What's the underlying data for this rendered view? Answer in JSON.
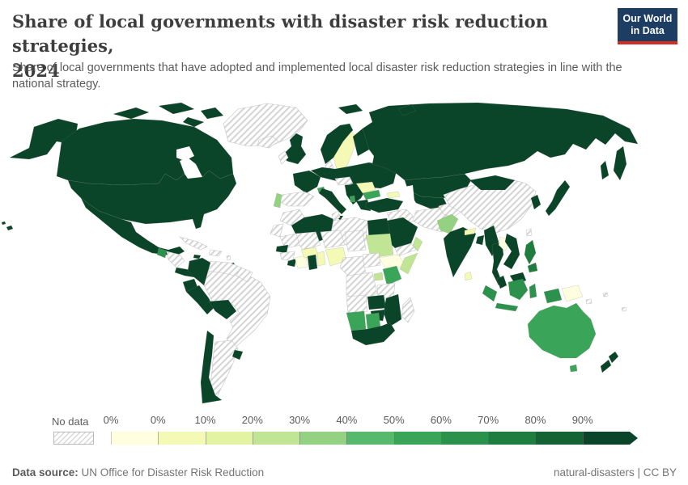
{
  "header": {
    "title": "Share of local governments with disaster risk reduction strategies, 2024",
    "title_lines": [
      "Share of local governments with disaster risk reduction strategies,",
      "2024"
    ],
    "logo": {
      "line1": "Our World",
      "line2": "in Data"
    }
  },
  "subtitle": "Share of local governments that have adopted and implemented local disaster risk reduction strategies in line with the national strategy.",
  "legend": {
    "no_data_label": "No data",
    "ticks": [
      "0%",
      "0%",
      "10%",
      "20%",
      "30%",
      "40%",
      "50%",
      "60%",
      "70%",
      "80%",
      "90%"
    ],
    "segment_colors": [
      "#ffffe0",
      "#f4f9b5",
      "#e2f3a3",
      "#c0e595",
      "#94d183",
      "#57b96c",
      "#3aa559",
      "#2b914c",
      "#1f7d40",
      "#136335",
      "#0a4429"
    ]
  },
  "footer": {
    "source_label": "Data source:",
    "source_value": "UN Office for Disaster Risk Reduction",
    "attribution": "natural-disasters | CC BY"
  },
  "colors": {
    "logo_bg": "#1d3d63",
    "logo_accent": "#cf2e24",
    "darkest_green": "#0a4429",
    "hatch_line": "#d4d4d4",
    "ocean": "#ffffff"
  },
  "chart_data": {
    "type": "choropleth",
    "title": "Share of local governments with disaster risk reduction strategies, 2024",
    "unit": "% of local governments",
    "legend_bins": [
      "No data",
      "0%",
      "0-10%",
      "10-20%",
      "20-30%",
      "30-40%",
      "40-50%",
      "50-60%",
      "60-70%",
      "70-80%",
      "80-90%",
      "90-100%"
    ],
    "regions": [
      {
        "id": "canada",
        "name": "Canada",
        "value": "90-100%",
        "color": "#0a4429"
      },
      {
        "id": "usa",
        "name": "United States",
        "value": "90-100%",
        "color": "#0a4429"
      },
      {
        "id": "mexico",
        "name": "Mexico",
        "value": "90-100%",
        "color": "#0a4429"
      },
      {
        "id": "guatemala",
        "name": "Guatemala",
        "value": "60-70%",
        "color": "#2b914c"
      },
      {
        "id": "costarica-panama",
        "name": "Costa Rica & Panama",
        "value": "90-100%",
        "color": "#0a4429"
      },
      {
        "id": "jamaica",
        "name": "Jamaica",
        "value": "90-100%",
        "color": "#0a4429"
      },
      {
        "id": "trinidad",
        "name": "Trinidad and Tobago",
        "value": "90-100%",
        "color": "#0a4429"
      },
      {
        "id": "colombia",
        "name": "Colombia",
        "value": "90-100%",
        "color": "#0a4429"
      },
      {
        "id": "ecuador",
        "name": "Ecuador",
        "value": "90-100%",
        "color": "#0a4429"
      },
      {
        "id": "peru",
        "name": "Peru",
        "value": "90-100%",
        "color": "#0a4429"
      },
      {
        "id": "bolivia",
        "name": "Bolivia",
        "value": "90-100%",
        "color": "#0a4429"
      },
      {
        "id": "chile",
        "name": "Chile",
        "value": "90-100%",
        "color": "#0a4429"
      },
      {
        "id": "uruguay",
        "name": "Uruguay",
        "value": "90-100%",
        "color": "#0a4429"
      },
      {
        "id": "norway",
        "name": "Norway",
        "value": "90-100%",
        "color": "#0a4429"
      },
      {
        "id": "finland",
        "name": "Finland",
        "value": "90-100%",
        "color": "#0a4429"
      },
      {
        "id": "uk",
        "name": "United Kingdom",
        "value": "90-100%",
        "color": "#0a4429"
      },
      {
        "id": "france",
        "name": "France",
        "value": "90-100%",
        "color": "#0a4429"
      },
      {
        "id": "central-europe",
        "name": "Germany, Poland, Ukraine & Eastern Europe",
        "value": "90-100%",
        "color": "#0a4429"
      },
      {
        "id": "italy",
        "name": "Italy",
        "value": "90-100%",
        "color": "#0a4429"
      },
      {
        "id": "balkans",
        "name": "Serbia & Western Balkans",
        "value": "90-100%",
        "color": "#0a4429"
      },
      {
        "id": "greece",
        "name": "Greece",
        "value": "90-100%",
        "color": "#0a4429"
      },
      {
        "id": "russia",
        "name": "Russia",
        "value": "90-100%",
        "color": "#0a4429"
      },
      {
        "id": "kazakhstan",
        "name": "Kazakhstan",
        "value": "90-100%",
        "color": "#0a4429"
      },
      {
        "id": "central-asia",
        "name": "Uzbekistan & Turkmenistan",
        "value": "90-100%",
        "color": "#0a4429"
      },
      {
        "id": "turkey",
        "name": "Turkey",
        "value": "90-100%",
        "color": "#0a4429"
      },
      {
        "id": "saudi-arabia",
        "name": "Saudi Arabia",
        "value": "90-100%",
        "color": "#0a4429"
      },
      {
        "id": "algeria",
        "name": "Algeria",
        "value": "90-100%",
        "color": "#0a4429"
      },
      {
        "id": "egypt",
        "name": "Egypt",
        "value": "90-100%",
        "color": "#0a4429"
      },
      {
        "id": "senegal",
        "name": "Senegal & Gambia",
        "value": "90-100%",
        "color": "#0a4429"
      },
      {
        "id": "liberia",
        "name": "Liberia",
        "value": "90-100%",
        "color": "#0a4429"
      },
      {
        "id": "ghana",
        "name": "Ghana",
        "value": "90-100%",
        "color": "#0a4429"
      },
      {
        "id": "zambia",
        "name": "Zambia",
        "value": "90-100%",
        "color": "#0a4429"
      },
      {
        "id": "zimbabwe",
        "name": "Zimbabwe",
        "value": "90-100%",
        "color": "#0a4429"
      },
      {
        "id": "mozambique",
        "name": "Mozambique",
        "value": "90-100%",
        "color": "#0a4429"
      },
      {
        "id": "south-africa",
        "name": "South Africa",
        "value": "90-100%",
        "color": "#0a4429"
      },
      {
        "id": "india",
        "name": "India",
        "value": "90-100%",
        "color": "#0a4429"
      },
      {
        "id": "bangladesh",
        "name": "Bangladesh",
        "value": "90-100%",
        "color": "#0a4429"
      },
      {
        "id": "myanmar",
        "name": "Myanmar",
        "value": "90-100%",
        "color": "#0a4429"
      },
      {
        "id": "thailand",
        "name": "Thailand",
        "value": "90-100%",
        "color": "#0a4429"
      },
      {
        "id": "vietnam",
        "name": "Vietnam & Cambodia",
        "value": "90-100%",
        "color": "#0a4429"
      },
      {
        "id": "malaysia",
        "name": "Malaysia",
        "value": "90-100%",
        "color": "#0a4429"
      },
      {
        "id": "south-korea",
        "name": "South Korea",
        "value": "90-100%",
        "color": "#0a4429"
      },
      {
        "id": "japan",
        "name": "Japan",
        "value": "90-100%",
        "color": "#0a4429"
      },
      {
        "id": "mongolia",
        "name": "Mongolia",
        "value": "90-100%",
        "color": "#0a4429"
      },
      {
        "id": "new-zealand",
        "name": "New Zealand",
        "value": "90-100%",
        "color": "#0a4429"
      },
      {
        "id": "philippines",
        "name": "Philippines",
        "value": "70-80%",
        "color": "#1f7d40"
      },
      {
        "id": "indonesia",
        "name": "Indonesia",
        "value": "60-70%",
        "color": "#2b914c"
      },
      {
        "id": "australia",
        "name": "Australia",
        "value": "50-60%",
        "color": "#3aa559"
      },
      {
        "id": "kenya",
        "name": "Kenya",
        "value": "50-60%",
        "color": "#3aa559"
      },
      {
        "id": "namibia",
        "name": "Namibia",
        "value": "50-60%",
        "color": "#3aa559"
      },
      {
        "id": "botswana",
        "name": "Botswana",
        "value": "50-60%",
        "color": "#3aa559"
      },
      {
        "id": "bulgaria",
        "name": "Bulgaria",
        "value": "50-60%",
        "color": "#3aa559"
      },
      {
        "id": "switzerland",
        "name": "Switzerland",
        "value": "50-60%",
        "color": "#3aa559"
      },
      {
        "id": "albania",
        "name": "Albania",
        "value": "50-60%",
        "color": "#3aa559"
      },
      {
        "id": "portugal",
        "name": "Portugal",
        "value": "30-40%",
        "color": "#94d183"
      },
      {
        "id": "pakistan",
        "name": "Pakistan",
        "value": "30-40%",
        "color": "#94d183"
      },
      {
        "id": "sudan",
        "name": "Sudan",
        "value": "20-30%",
        "color": "#c0e595"
      },
      {
        "id": "somalia",
        "name": "Somalia",
        "value": "20-30%",
        "color": "#c0e595"
      },
      {
        "id": "uganda",
        "name": "Uganda",
        "value": "20-30%",
        "color": "#c0e595"
      },
      {
        "id": "kyrgyzstan",
        "name": "Kyrgyzstan",
        "value": "20-30%",
        "color": "#c0e595"
      },
      {
        "id": "oman",
        "name": "Oman",
        "value": "20-30%",
        "color": "#c0e595"
      },
      {
        "id": "sweden",
        "name": "Sweden",
        "value": "0-10%",
        "color": "#f4f9b5"
      },
      {
        "id": "romania",
        "name": "Romania",
        "value": "0-10%",
        "color": "#f4f9b5"
      },
      {
        "id": "nigeria",
        "name": "Nigeria",
        "value": "0-10%",
        "color": "#f4f9b5"
      },
      {
        "id": "burkina-faso",
        "name": "Burkina Faso",
        "value": "0-10%",
        "color": "#f4f9b5"
      },
      {
        "id": "togo-benin",
        "name": "Togo & Benin",
        "value": "0-10%",
        "color": "#f4f9b5"
      },
      {
        "id": "sri-lanka",
        "name": "Sri Lanka",
        "value": "0-10%",
        "color": "#f4f9b5"
      },
      {
        "id": "nepal",
        "name": "Nepal",
        "value": "0-10%",
        "color": "#f4f9b5"
      },
      {
        "id": "georgia",
        "name": "Georgia",
        "value": "0-10%",
        "color": "#f4f9b5"
      },
      {
        "id": "ethiopia",
        "name": "Ethiopia",
        "value": "0%",
        "color": "#ffffe0"
      },
      {
        "id": "cote-divoire",
        "name": "Cote d'Ivoire",
        "value": "0%",
        "color": "#ffffe0"
      },
      {
        "id": "laos",
        "name": "Laos",
        "value": "0%",
        "color": "#ffffe0"
      },
      {
        "id": "papua-new-guinea",
        "name": "Papua New Guinea",
        "value": "0%",
        "color": "#ffffe0"
      },
      {
        "id": "greenland",
        "name": "Greenland",
        "value": "No data",
        "color": "nodata"
      },
      {
        "id": "iceland",
        "name": "Iceland",
        "value": "No data",
        "color": "nodata"
      },
      {
        "id": "ireland",
        "name": "Ireland",
        "value": "No data",
        "color": "nodata"
      },
      {
        "id": "denmark",
        "name": "Denmark",
        "value": "No data",
        "color": "nodata"
      },
      {
        "id": "spain",
        "name": "Spain",
        "value": "No data",
        "color": "nodata"
      },
      {
        "id": "czechia-hungary",
        "name": "Czechia, Austria & Hungary",
        "value": "No data",
        "color": "nodata"
      },
      {
        "id": "morocco",
        "name": "Morocco",
        "value": "No data",
        "color": "nodata"
      },
      {
        "id": "tunisia",
        "name": "Tunisia",
        "value": "No data",
        "color": "nodata"
      },
      {
        "id": "libya",
        "name": "Libya",
        "value": "No data",
        "color": "nodata"
      },
      {
        "id": "western-sahara",
        "name": "Western Sahara",
        "value": "No data",
        "color": "nodata"
      },
      {
        "id": "mauritania",
        "name": "Mauritania",
        "value": "No data",
        "color": "nodata"
      },
      {
        "id": "mali",
        "name": "Mali",
        "value": "No data",
        "color": "nodata"
      },
      {
        "id": "niger",
        "name": "Niger",
        "value": "No data",
        "color": "nodata"
      },
      {
        "id": "chad",
        "name": "Chad",
        "value": "No data",
        "color": "nodata"
      },
      {
        "id": "guinea",
        "name": "Guinea",
        "value": "No data",
        "color": "nodata"
      },
      {
        "id": "cameroon-congo",
        "name": "Cameroon & Central Africa",
        "value": "No data",
        "color": "nodata"
      },
      {
        "id": "south-sudan",
        "name": "South Sudan & CAR",
        "value": "No data",
        "color": "nodata"
      },
      {
        "id": "drc",
        "name": "Democratic Republic of Congo",
        "value": "No data",
        "color": "nodata"
      },
      {
        "id": "tanzania",
        "name": "Tanzania",
        "value": "No data",
        "color": "nodata"
      },
      {
        "id": "angola",
        "name": "Angola",
        "value": "No data",
        "color": "nodata"
      },
      {
        "id": "madagascar",
        "name": "Madagascar",
        "value": "No data",
        "color": "nodata"
      },
      {
        "id": "venezuela",
        "name": "Venezuela",
        "value": "No data",
        "color": "nodata"
      },
      {
        "id": "guyanas",
        "name": "Guyana, Suriname & Fr. Guiana",
        "value": "No data",
        "color": "nodata"
      },
      {
        "id": "brazil",
        "name": "Brazil",
        "value": "No data",
        "color": "nodata"
      },
      {
        "id": "argentina",
        "name": "Argentina & Paraguay",
        "value": "No data",
        "color": "nodata"
      },
      {
        "id": "cuba",
        "name": "Cuba",
        "value": "No data",
        "color": "nodata"
      },
      {
        "id": "hispaniola",
        "name": "Haiti & Dominican Republic",
        "value": "No data",
        "color": "nodata"
      },
      {
        "id": "honduras-nicaragua",
        "name": "Honduras & Nicaragua",
        "value": "No data",
        "color": "nodata"
      },
      {
        "id": "lesser-antilles",
        "name": "Lesser Antilles",
        "value": "No data",
        "color": "nodata"
      },
      {
        "id": "syria-iraq",
        "name": "Syria, Iraq & Jordan",
        "value": "No data",
        "color": "nodata"
      },
      {
        "id": "iran",
        "name": "Iran",
        "value": "No data",
        "color": "nodata"
      },
      {
        "id": "afghanistan",
        "name": "Afghanistan",
        "value": "No data",
        "color": "nodata"
      },
      {
        "id": "yemen",
        "name": "Yemen",
        "value": "No data",
        "color": "nodata"
      },
      {
        "id": "china",
        "name": "China",
        "value": "No data",
        "color": "nodata"
      },
      {
        "id": "taiwan",
        "name": "Taiwan",
        "value": "No data",
        "color": "nodata"
      },
      {
        "id": "solomon",
        "name": "Solomon Islands",
        "value": "No data",
        "color": "nodata"
      },
      {
        "id": "pacific",
        "name": "Pacific islands",
        "value": "No data",
        "color": "nodata"
      }
    ]
  }
}
